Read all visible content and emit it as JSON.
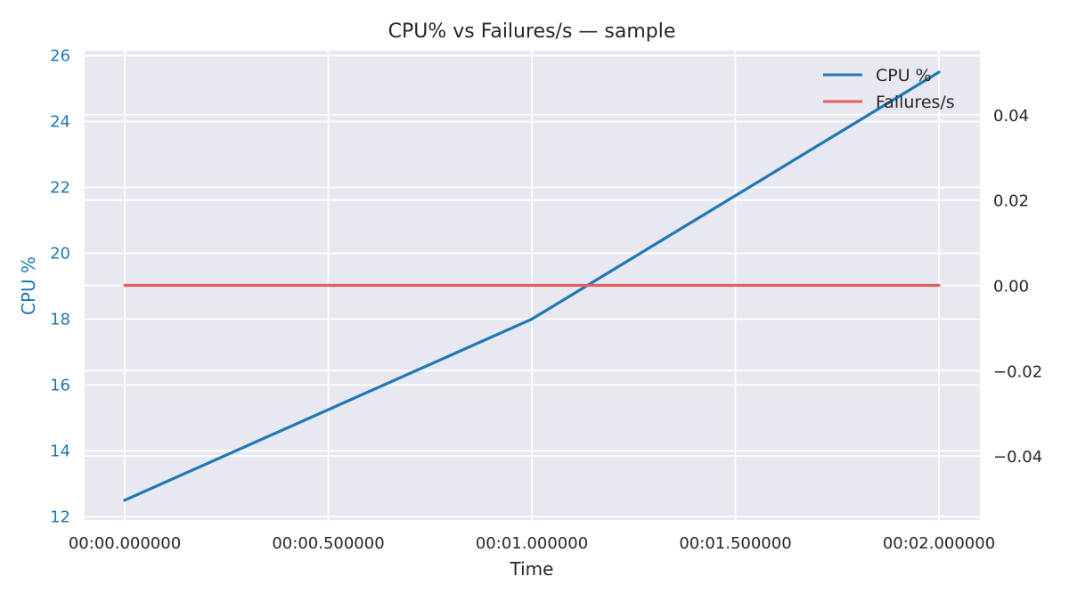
{
  "chart_data": {
    "type": "line",
    "title": "CPU% vs Failures/s — sample",
    "xlabel": "Time",
    "ylabel_left": "CPU %",
    "ylabel_right": "",
    "x": [
      "00:00.000000",
      "00:01.000000",
      "00:02.000000"
    ],
    "x_tick_labels": [
      "00:00.000000",
      "00:00.500000",
      "00:01.000000",
      "00:01.500000",
      "00:02.000000"
    ],
    "y_left_ticks": [
      "12",
      "14",
      "16",
      "18",
      "20",
      "22",
      "24",
      "26"
    ],
    "y_right_ticks": [
      "−0.04",
      "−0.02",
      "0.00",
      "0.02",
      "0.04"
    ],
    "y_left_lim": [
      11.9,
      26.15
    ],
    "y_right_lim": [
      -0.055,
      0.055
    ],
    "series": [
      {
        "name": "CPU %",
        "axis": "left",
        "values": [
          12.5,
          18.0,
          25.5
        ],
        "color": "#1f77b4"
      },
      {
        "name": "Failures/s",
        "axis": "right",
        "values": [
          0.0,
          0.0,
          0.0
        ],
        "color": "#e06060"
      }
    ],
    "grid": true,
    "legend_position": "top-right",
    "colors": {
      "background": "#e8e8f1",
      "grid": "#ffffff",
      "left_axis": "#1f77b4",
      "text": "#262626"
    }
  }
}
